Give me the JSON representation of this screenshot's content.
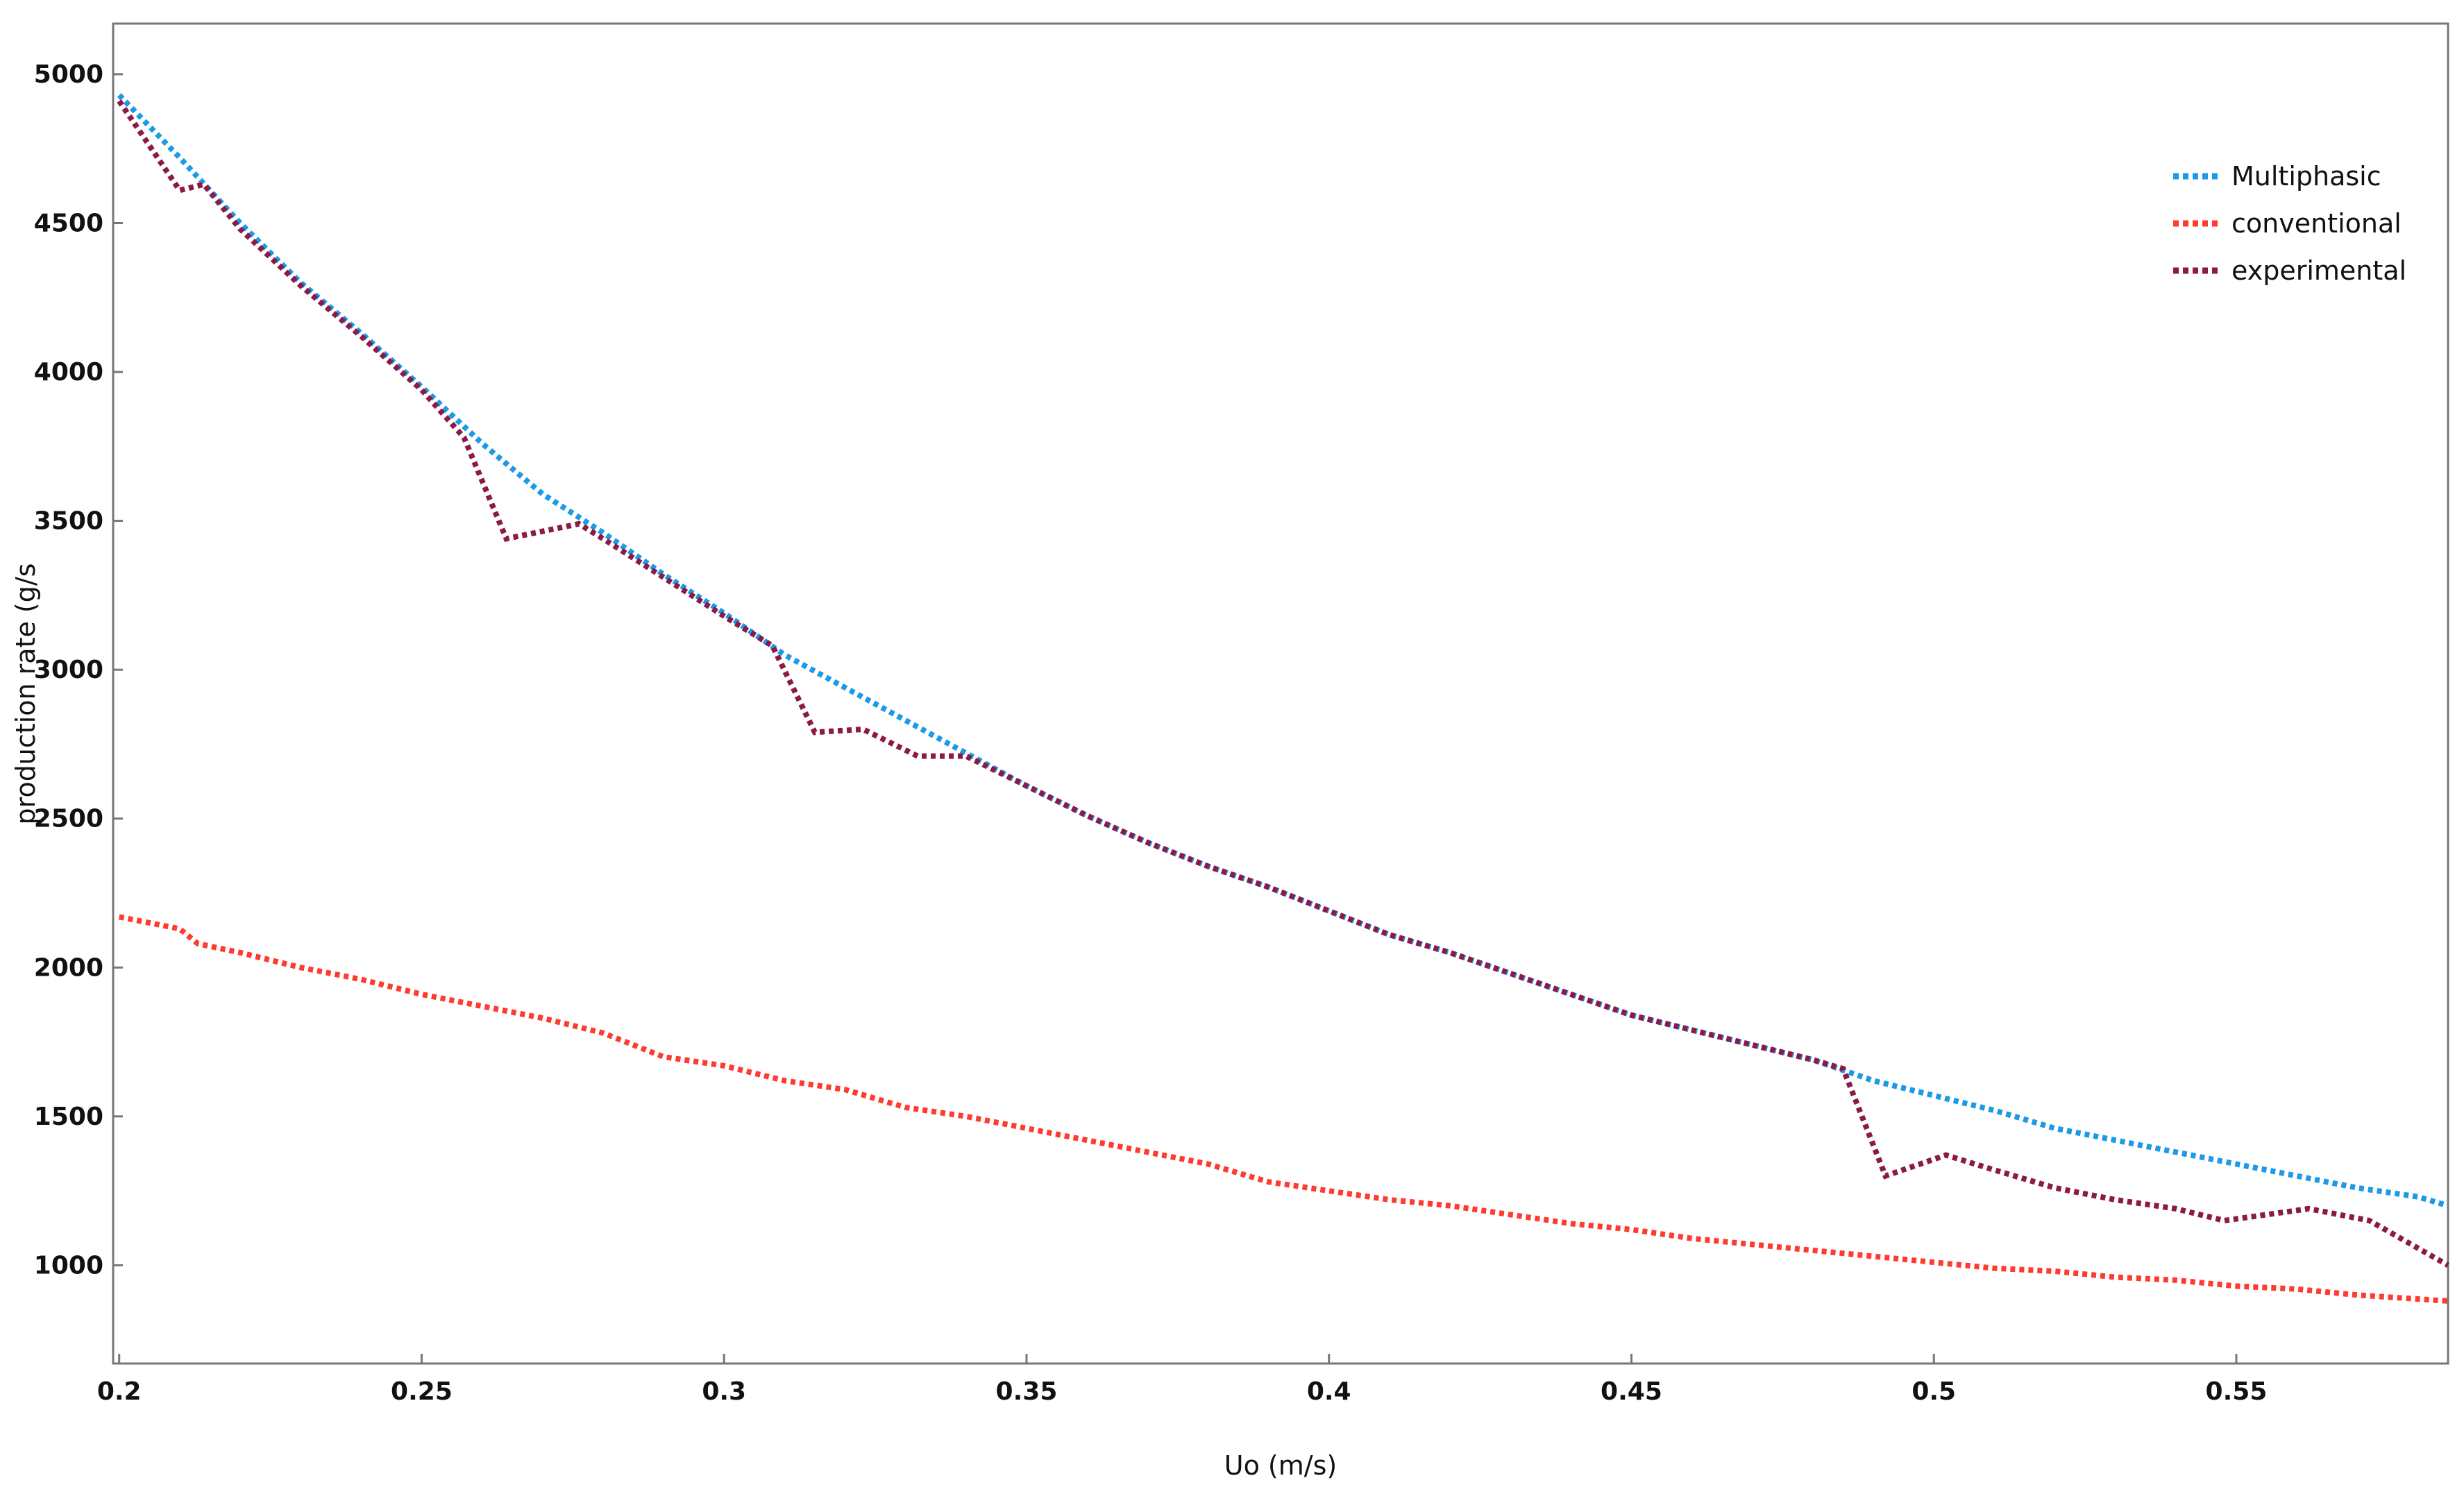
{
  "chart_data": {
    "type": "line",
    "x_label": "Uo (m/s)",
    "y_label": "production rate (g/s",
    "xlim": [
      0.199,
      0.585
    ],
    "ylim": [
      670,
      5170
    ],
    "xticks": [
      0.2,
      0.25,
      0.3,
      0.35,
      0.4,
      0.45,
      0.5,
      0.55
    ],
    "yticks": [
      1000,
      1500,
      2000,
      2500,
      3000,
      3500,
      4000,
      4500,
      5000
    ],
    "grid": false,
    "legend": "upper right",
    "series": [
      {
        "name": "Multiphasic",
        "color": "#1a9ae8",
        "x": [
          0.2,
          0.21,
          0.22,
          0.23,
          0.24,
          0.25,
          0.26,
          0.27,
          0.28,
          0.29,
          0.3,
          0.31,
          0.32,
          0.33,
          0.34,
          0.35,
          0.36,
          0.37,
          0.38,
          0.39,
          0.4,
          0.41,
          0.42,
          0.43,
          0.44,
          0.45,
          0.46,
          0.47,
          0.48,
          0.49,
          0.5,
          0.51,
          0.52,
          0.53,
          0.54,
          0.55,
          0.56,
          0.57,
          0.58,
          0.585
        ],
        "values": [
          4930,
          4720,
          4500,
          4300,
          4130,
          3950,
          3760,
          3590,
          3460,
          3320,
          3190,
          3050,
          2940,
          2830,
          2720,
          2610,
          2510,
          2420,
          2340,
          2270,
          2190,
          2110,
          2050,
          1980,
          1910,
          1840,
          1790,
          1740,
          1690,
          1620,
          1570,
          1520,
          1460,
          1420,
          1380,
          1340,
          1300,
          1260,
          1230,
          1200
        ]
      },
      {
        "name": "conventional",
        "color": "#ff3b30",
        "x": [
          0.2,
          0.21,
          0.213,
          0.22,
          0.23,
          0.24,
          0.25,
          0.26,
          0.27,
          0.28,
          0.29,
          0.3,
          0.31,
          0.32,
          0.33,
          0.34,
          0.35,
          0.36,
          0.37,
          0.38,
          0.39,
          0.4,
          0.41,
          0.42,
          0.43,
          0.44,
          0.45,
          0.46,
          0.47,
          0.48,
          0.49,
          0.5,
          0.51,
          0.52,
          0.53,
          0.54,
          0.55,
          0.56,
          0.57,
          0.585
        ],
        "values": [
          2170,
          2130,
          2080,
          2050,
          2000,
          1960,
          1910,
          1870,
          1830,
          1780,
          1700,
          1670,
          1620,
          1590,
          1530,
          1500,
          1460,
          1420,
          1380,
          1340,
          1280,
          1250,
          1220,
          1200,
          1170,
          1140,
          1120,
          1090,
          1070,
          1050,
          1030,
          1010,
          990,
          980,
          960,
          950,
          930,
          920,
          900,
          880
        ]
      },
      {
        "name": "experimental",
        "color": "#8b1a48",
        "x": [
          0.2,
          0.21,
          0.214,
          0.22,
          0.23,
          0.24,
          0.25,
          0.257,
          0.264,
          0.276,
          0.28,
          0.29,
          0.3,
          0.308,
          0.315,
          0.323,
          0.332,
          0.34,
          0.35,
          0.36,
          0.37,
          0.38,
          0.39,
          0.4,
          0.41,
          0.42,
          0.43,
          0.44,
          0.45,
          0.46,
          0.47,
          0.48,
          0.485,
          0.492,
          0.502,
          0.51,
          0.52,
          0.53,
          0.54,
          0.548,
          0.562,
          0.572,
          0.585
        ],
        "values": [
          4910,
          4610,
          4630,
          4480,
          4290,
          4120,
          3940,
          3780,
          3440,
          3490,
          3440,
          3310,
          3180,
          3080,
          2790,
          2800,
          2710,
          2710,
          2610,
          2510,
          2420,
          2340,
          2270,
          2190,
          2110,
          2050,
          1980,
          1910,
          1840,
          1790,
          1740,
          1690,
          1660,
          1300,
          1370,
          1320,
          1260,
          1220,
          1190,
          1150,
          1190,
          1150,
          1000
        ]
      }
    ]
  }
}
